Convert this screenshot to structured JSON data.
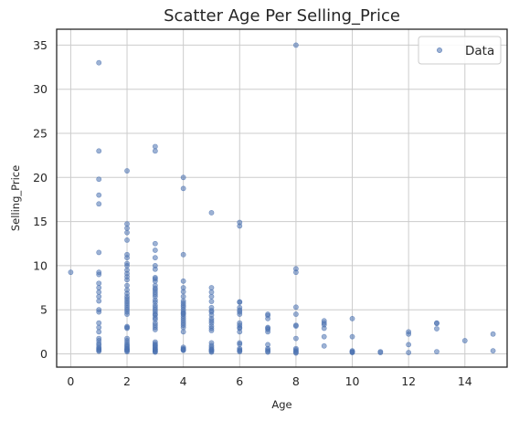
{
  "chart_data": {
    "type": "scatter",
    "title": "Scatter Age Per Selling_Price",
    "xlabel": "Age",
    "ylabel": "Selling_Price",
    "xlim": [
      -0.5,
      15.5
    ],
    "ylim": [
      -1.5,
      36.8
    ],
    "xticks": [
      0,
      2,
      4,
      6,
      8,
      10,
      12,
      14
    ],
    "yticks": [
      0,
      5,
      10,
      15,
      20,
      25,
      30,
      35
    ],
    "grid": true,
    "legend": {
      "position": "top-right",
      "entries": [
        "Data"
      ]
    },
    "point_color": "#4C72B0",
    "series": [
      {
        "name": "Data",
        "points": [
          [
            0,
            9.25
          ],
          [
            1,
            33.0
          ],
          [
            1,
            23.0
          ],
          [
            1,
            19.8
          ],
          [
            1,
            18.0
          ],
          [
            1,
            17.0
          ],
          [
            1,
            11.5
          ],
          [
            1,
            9.25
          ],
          [
            1,
            9.0
          ],
          [
            1,
            8.0
          ],
          [
            1,
            7.5
          ],
          [
            1,
            7.0
          ],
          [
            1,
            6.5
          ],
          [
            1,
            6.0
          ],
          [
            1,
            5.0
          ],
          [
            1,
            4.75
          ],
          [
            1,
            3.5
          ],
          [
            1,
            3.0
          ],
          [
            1,
            2.5
          ],
          [
            1,
            1.75
          ],
          [
            1,
            1.5
          ],
          [
            1,
            1.2
          ],
          [
            1,
            1.0
          ],
          [
            1,
            0.75
          ],
          [
            1,
            0.6
          ],
          [
            1,
            0.5
          ],
          [
            1,
            0.4
          ],
          [
            1,
            0.3
          ],
          [
            2,
            20.75
          ],
          [
            2,
            14.73
          ],
          [
            2,
            14.25
          ],
          [
            2,
            13.75
          ],
          [
            2,
            12.9
          ],
          [
            2,
            11.25
          ],
          [
            2,
            10.9
          ],
          [
            2,
            10.25
          ],
          [
            2,
            10.0
          ],
          [
            2,
            9.5
          ],
          [
            2,
            9.1
          ],
          [
            2,
            8.75
          ],
          [
            2,
            8.4
          ],
          [
            2,
            7.75
          ],
          [
            2,
            7.25
          ],
          [
            2,
            6.85
          ],
          [
            2,
            6.5
          ],
          [
            2,
            6.25
          ],
          [
            2,
            6.0
          ],
          [
            2,
            5.75
          ],
          [
            2,
            5.5
          ],
          [
            2,
            5.25
          ],
          [
            2,
            5.0
          ],
          [
            2,
            4.75
          ],
          [
            2,
            4.5
          ],
          [
            2,
            3.1
          ],
          [
            2,
            3.0
          ],
          [
            2,
            2.9
          ],
          [
            2,
            1.75
          ],
          [
            2,
            1.5
          ],
          [
            2,
            1.25
          ],
          [
            2,
            1.05
          ],
          [
            2,
            0.9
          ],
          [
            2,
            0.75
          ],
          [
            2,
            0.6
          ],
          [
            2,
            0.5
          ],
          [
            2,
            0.45
          ],
          [
            2,
            0.35
          ],
          [
            2,
            0.25
          ],
          [
            3,
            23.5
          ],
          [
            3,
            23.0
          ],
          [
            3,
            12.5
          ],
          [
            3,
            11.75
          ],
          [
            3,
            10.9
          ],
          [
            3,
            10.0
          ],
          [
            3,
            9.6
          ],
          [
            3,
            8.65
          ],
          [
            3,
            8.5
          ],
          [
            3,
            8.25
          ],
          [
            3,
            7.75
          ],
          [
            3,
            7.45
          ],
          [
            3,
            7.25
          ],
          [
            3,
            7.0
          ],
          [
            3,
            6.75
          ],
          [
            3,
            6.5
          ],
          [
            3,
            6.1
          ],
          [
            3,
            5.85
          ],
          [
            3,
            5.5
          ],
          [
            3,
            5.25
          ],
          [
            3,
            5.0
          ],
          [
            3,
            4.75
          ],
          [
            3,
            4.5
          ],
          [
            3,
            4.4
          ],
          [
            3,
            4.1
          ],
          [
            3,
            3.9
          ],
          [
            3,
            3.5
          ],
          [
            3,
            3.25
          ],
          [
            3,
            3.0
          ],
          [
            3,
            2.75
          ],
          [
            3,
            1.35
          ],
          [
            3,
            1.15
          ],
          [
            3,
            1.0
          ],
          [
            3,
            0.9
          ],
          [
            3,
            0.75
          ],
          [
            3,
            0.6
          ],
          [
            3,
            0.5
          ],
          [
            3,
            0.45
          ],
          [
            3,
            0.35
          ],
          [
            3,
            0.25
          ],
          [
            3,
            0.2
          ],
          [
            4,
            20.0
          ],
          [
            4,
            18.75
          ],
          [
            4,
            11.25
          ],
          [
            4,
            8.25
          ],
          [
            4,
            7.5
          ],
          [
            4,
            7.05
          ],
          [
            4,
            6.5
          ],
          [
            4,
            6.0
          ],
          [
            4,
            5.75
          ],
          [
            4,
            5.5
          ],
          [
            4,
            5.3
          ],
          [
            4,
            5.0
          ],
          [
            4,
            4.75
          ],
          [
            4,
            4.6
          ],
          [
            4,
            4.5
          ],
          [
            4,
            4.25
          ],
          [
            4,
            4.0
          ],
          [
            4,
            3.75
          ],
          [
            4,
            3.5
          ],
          [
            4,
            3.25
          ],
          [
            4,
            3.0
          ],
          [
            4,
            2.5
          ],
          [
            4,
            0.75
          ],
          [
            4,
            0.6
          ],
          [
            4,
            0.5
          ],
          [
            4,
            0.45
          ],
          [
            4,
            0.4
          ],
          [
            5,
            16.0
          ],
          [
            5,
            7.5
          ],
          [
            5,
            7.0
          ],
          [
            5,
            6.5
          ],
          [
            5,
            5.95
          ],
          [
            5,
            5.25
          ],
          [
            5,
            4.9
          ],
          [
            5,
            4.75
          ],
          [
            5,
            4.4
          ],
          [
            5,
            4.0
          ],
          [
            5,
            3.75
          ],
          [
            5,
            3.5
          ],
          [
            5,
            3.15
          ],
          [
            5,
            2.9
          ],
          [
            5,
            2.65
          ],
          [
            5,
            1.25
          ],
          [
            5,
            0.95
          ],
          [
            5,
            0.75
          ],
          [
            5,
            0.55
          ],
          [
            5,
            0.45
          ],
          [
            5,
            0.4
          ],
          [
            5,
            0.3
          ],
          [
            5,
            0.2
          ],
          [
            6,
            14.9
          ],
          [
            6,
            14.5
          ],
          [
            6,
            5.9
          ],
          [
            6,
            5.85
          ],
          [
            6,
            5.25
          ],
          [
            6,
            4.95
          ],
          [
            6,
            4.75
          ],
          [
            6,
            4.5
          ],
          [
            6,
            3.5
          ],
          [
            6,
            3.25
          ],
          [
            6,
            3.0
          ],
          [
            6,
            2.9
          ],
          [
            6,
            2.5
          ],
          [
            6,
            1.25
          ],
          [
            6,
            1.1
          ],
          [
            6,
            0.6
          ],
          [
            6,
            0.45
          ],
          [
            6,
            0.35
          ],
          [
            6,
            0.25
          ],
          [
            7,
            4.5
          ],
          [
            7,
            4.35
          ],
          [
            7,
            4.0
          ],
          [
            7,
            3.0
          ],
          [
            7,
            2.9
          ],
          [
            7,
            2.75
          ],
          [
            7,
            2.5
          ],
          [
            7,
            1.05
          ],
          [
            7,
            0.6
          ],
          [
            7,
            0.45
          ],
          [
            7,
            0.3
          ],
          [
            7,
            0.2
          ],
          [
            8,
            35.0
          ],
          [
            8,
            9.65
          ],
          [
            8,
            9.25
          ],
          [
            8,
            5.3
          ],
          [
            8,
            4.5
          ],
          [
            8,
            3.25
          ],
          [
            8,
            3.15
          ],
          [
            8,
            1.75
          ],
          [
            8,
            0.6
          ],
          [
            8,
            0.45
          ],
          [
            8,
            0.3
          ],
          [
            8,
            0.2
          ],
          [
            8,
            0.1
          ],
          [
            9,
            3.75
          ],
          [
            9,
            3.5
          ],
          [
            9,
            3.3
          ],
          [
            9,
            2.9
          ],
          [
            9,
            1.95
          ],
          [
            9,
            0.9
          ],
          [
            10,
            4.0
          ],
          [
            10,
            1.95
          ],
          [
            10,
            0.35
          ],
          [
            10,
            0.25
          ],
          [
            10,
            0.2
          ],
          [
            10,
            0.15
          ],
          [
            11,
            0.25
          ],
          [
            11,
            0.15
          ],
          [
            12,
            2.5
          ],
          [
            12,
            2.25
          ],
          [
            12,
            1.05
          ],
          [
            12,
            0.15
          ],
          [
            13,
            3.5
          ],
          [
            13,
            3.45
          ],
          [
            13,
            2.85
          ],
          [
            13,
            0.25
          ],
          [
            14,
            1.5
          ],
          [
            15,
            2.25
          ],
          [
            15,
            0.35
          ]
        ]
      }
    ]
  }
}
